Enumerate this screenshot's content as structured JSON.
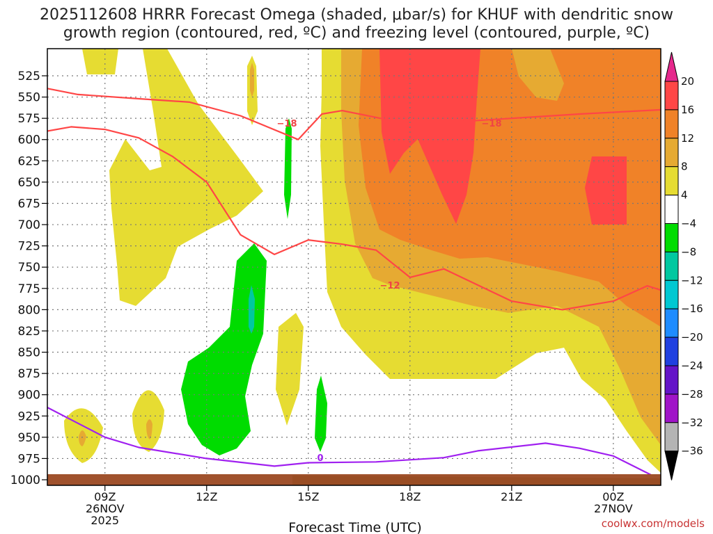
{
  "chart_data": {
    "type": "heatmap",
    "title_line1": "2025112608 HRRR Forecast Omega (shaded, μbar/s) for KHUF with dendritic snow",
    "title_line2": "growth region (contoured, red, ºC) and freezing level (contoured, purple, ºC)",
    "xlabel": "Forecast Time (UTC)",
    "ylabel": "",
    "credit": "coolwx.com/models",
    "x_forecast_hour_range": [
      -0.7,
      17.4
    ],
    "y_pressure_range_hPa": [
      1000,
      500
    ],
    "x_ticks": [
      {
        "hour": 1,
        "label": "09Z",
        "date": "26NOV",
        "year": "2025"
      },
      {
        "hour": 4,
        "label": "12Z",
        "date": "",
        "year": ""
      },
      {
        "hour": 7,
        "label": "15Z",
        "date": "",
        "year": ""
      },
      {
        "hour": 10,
        "label": "18Z",
        "date": "",
        "year": ""
      },
      {
        "hour": 13,
        "label": "21Z",
        "date": "",
        "year": ""
      },
      {
        "hour": 16,
        "label": "00Z",
        "date": "27NOV",
        "year": ""
      }
    ],
    "y_ticks": [
      "525",
      "550",
      "575",
      "600",
      "625",
      "650",
      "675",
      "700",
      "725",
      "750",
      "775",
      "800",
      "825",
      "850",
      "875",
      "900",
      "925",
      "950",
      "975",
      "1000"
    ],
    "colorbar": {
      "ticks": [
        "20",
        "16",
        "12",
        "8",
        "4",
        "−4",
        "−8",
        "−12",
        "−16",
        "−20",
        "−24",
        "−28",
        "−32",
        "−36"
      ],
      "bins": [
        {
          "range": "16 to 20",
          "color": "#ff4646"
        },
        {
          "range": "12 to 16",
          "color": "#f08228"
        },
        {
          "range": "8 to 12",
          "color": "#e6aa32"
        },
        {
          "range": "4 to 8",
          "color": "#e6dc32"
        },
        {
          "range": "-4 to 4",
          "color": "#ffffff"
        },
        {
          "range": "-8 to -4",
          "color": "#00dc00"
        },
        {
          "range": "-12 to -8",
          "color": "#00c8a0"
        },
        {
          "range": "-16 to -12",
          "color": "#00c8d2"
        },
        {
          "range": "-20 to -16",
          "color": "#1e8cff"
        },
        {
          "range": "-24 to -20",
          "color": "#2040e0"
        },
        {
          "range": "-28 to -24",
          "color": "#6414c8"
        },
        {
          "range": "-32 to -28",
          "color": "#a014c8"
        },
        {
          "range": "-36 to -32",
          "color": "#b4b4b4"
        }
      ],
      "top_arrow_color": "#e6288c",
      "bottom_arrow_color": "#000000"
    },
    "regions": [
      {
        "name": "omega-low-yellow",
        "range": "4 to 8",
        "color": "#e6dc32"
      },
      {
        "name": "omega-upper-yellow",
        "range": "4 to 8",
        "color": "#e6dc32"
      },
      {
        "name": "omega-orange-band",
        "range": "8 to 16",
        "color": "#f08228"
      },
      {
        "name": "omega-max-red",
        "range": "16 to 20",
        "color": "#ff4646"
      },
      {
        "name": "omega-sinking-green",
        "range": "-8 to -4",
        "color": "#00dc00"
      },
      {
        "name": "omega-sinking-teal",
        "range": "-12 to -8",
        "color": "#00c8a0"
      }
    ],
    "contours": [
      {
        "name": "dgz-upper-isotherm",
        "value": -18,
        "label": "−18",
        "color": "#ff4646",
        "points": [
          [
            -0.7,
            540
          ],
          [
            0.2,
            547
          ],
          [
            2,
            552
          ],
          [
            3.5,
            556
          ],
          [
            5,
            572
          ],
          [
            6.7,
            600
          ],
          [
            7.4,
            570
          ],
          [
            8,
            566
          ],
          [
            10,
            582
          ],
          [
            11,
            580
          ],
          [
            13,
            575
          ],
          [
            15,
            570
          ],
          [
            17.4,
            565
          ]
        ]
      },
      {
        "name": "dgz-lower-isotherm",
        "value": -12,
        "label": "−12",
        "color": "#ff4646",
        "points": [
          [
            -0.7,
            590
          ],
          [
            0,
            585
          ],
          [
            1,
            588
          ],
          [
            2,
            598
          ],
          [
            3,
            620
          ],
          [
            4,
            650
          ],
          [
            5,
            712
          ],
          [
            6,
            735
          ],
          [
            7,
            718
          ],
          [
            8,
            723
          ],
          [
            9,
            730
          ],
          [
            10,
            762
          ],
          [
            11,
            752
          ],
          [
            13,
            790
          ],
          [
            14.5,
            800
          ],
          [
            16,
            790
          ],
          [
            17,
            772
          ],
          [
            17.4,
            777
          ]
        ]
      },
      {
        "name": "freezing-level",
        "value": 0,
        "label": "0",
        "color": "#a020f0",
        "points": [
          [
            -0.7,
            915
          ],
          [
            1,
            950
          ],
          [
            2,
            962
          ],
          [
            4,
            975
          ],
          [
            6,
            984
          ],
          [
            7,
            980
          ],
          [
            9,
            979
          ],
          [
            11,
            974
          ],
          [
            12,
            966
          ],
          [
            14,
            957
          ],
          [
            15,
            963
          ],
          [
            16,
            972
          ],
          [
            17.4,
            1000
          ]
        ]
      }
    ]
  }
}
